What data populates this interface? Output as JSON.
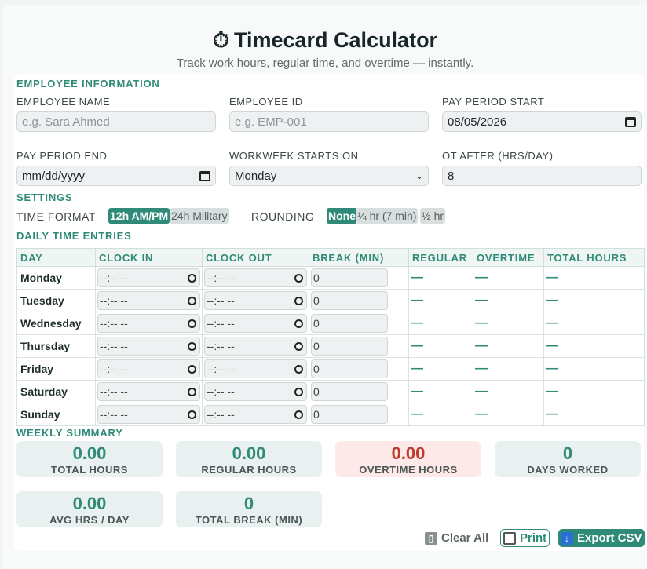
{
  "header": {
    "icon": "stopwatch-icon",
    "icon_glyph": "⏱",
    "title": "Timecard Calculator",
    "subtitle": "Track work hours, regular time, and overtime — instantly."
  },
  "employee": {
    "section": "EMPLOYEE INFORMATION",
    "name_label": "EMPLOYEE NAME",
    "name_placeholder": "e.g. Sara Ahmed",
    "id_label": "EMPLOYEE ID",
    "id_placeholder": "e.g. EMP-001",
    "start_label": "PAY PERIOD START",
    "start_value": "08/05/2026",
    "end_label": "PAY PERIOD END",
    "end_value": "mm/dd/yyyy",
    "week_label": "WORKWEEK STARTS ON",
    "week_value": "Monday",
    "ot_label": "OT AFTER (HRS/DAY)",
    "ot_value": "8"
  },
  "settings": {
    "section": "SETTINGS",
    "time_format_label": "TIME FORMAT",
    "time_format_options": [
      "12h AM/PM",
      "24h Military"
    ],
    "time_format_selected": "12h AM/PM",
    "rounding_label": "ROUNDING",
    "rounding_options": [
      "None",
      "¼ hr (7 min)",
      "½ hr"
    ],
    "rounding_selected": "None"
  },
  "entries": {
    "section": "DAILY TIME ENTRIES",
    "columns": [
      "DAY",
      "CLOCK IN",
      "CLOCK OUT",
      "BREAK (MIN)",
      "REGULAR",
      "OVERTIME",
      "TOTAL HOURS"
    ],
    "time_placeholder": "--:-- --",
    "rows": [
      {
        "day": "Monday",
        "break": "0",
        "regular": "—",
        "overtime": "—",
        "total": "—"
      },
      {
        "day": "Tuesday",
        "break": "0",
        "regular": "—",
        "overtime": "—",
        "total": "—"
      },
      {
        "day": "Wednesday",
        "break": "0",
        "regular": "—",
        "overtime": "—",
        "total": "—"
      },
      {
        "day": "Thursday",
        "break": "0",
        "regular": "—",
        "overtime": "—",
        "total": "—"
      },
      {
        "day": "Friday",
        "break": "0",
        "regular": "—",
        "overtime": "—",
        "total": "—"
      },
      {
        "day": "Saturday",
        "break": "0",
        "regular": "—",
        "overtime": "—",
        "total": "—"
      },
      {
        "day": "Sunday",
        "break": "0",
        "regular": "—",
        "overtime": "—",
        "total": "—"
      }
    ]
  },
  "summary": {
    "section": "WEEKLY SUMMARY",
    "total_hours": {
      "value": "0.00",
      "label": "TOTAL HOURS"
    },
    "regular_hours": {
      "value": "0.00",
      "label": "REGULAR HOURS"
    },
    "overtime_hours": {
      "value": "0.00",
      "label": "OVERTIME HOURS"
    },
    "days_worked": {
      "value": "0",
      "label": "DAYS WORKED"
    },
    "avg_hrs": {
      "value": "0.00",
      "label": "AVG HRS / DAY"
    },
    "total_break": {
      "value": "0",
      "label": "TOTAL BREAK (MIN)"
    }
  },
  "actions": {
    "clear_label": "Clear All",
    "print_label": "Print",
    "export_label": "Export CSV"
  },
  "colors": {
    "accent": "#2f8a78",
    "overtime": "#c0392b",
    "overtime_bg": "#fde9e8"
  }
}
